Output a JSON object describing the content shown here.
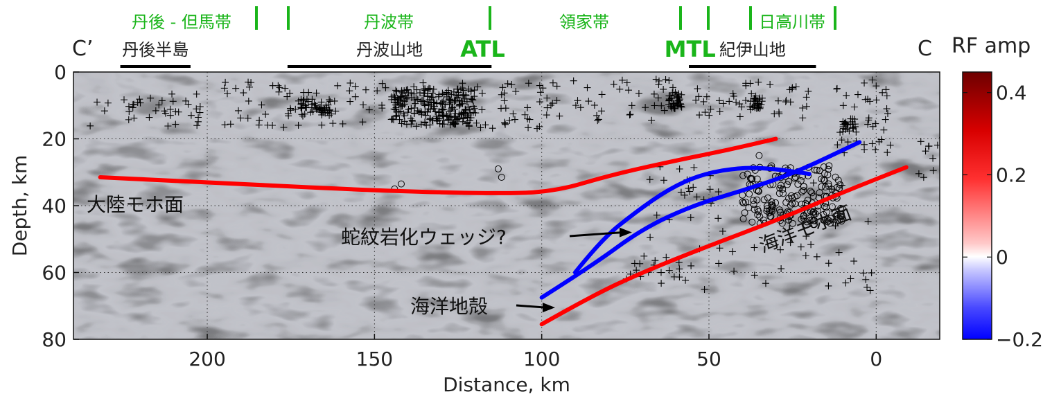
{
  "geo_zones": [
    {
      "label": "丹後 - 但馬帯"
    },
    {
      "label": "丹波帯"
    },
    {
      "label": "領家帯"
    },
    {
      "label": "日高川帯"
    }
  ],
  "faults": [
    {
      "label": "ATL",
      "distance_km": 116
    },
    {
      "label": "MTL",
      "distance_km": 54
    }
  ],
  "regions": [
    {
      "label": "丹後半島",
      "from_km": 226,
      "to_km": 205
    },
    {
      "label": "丹波山地",
      "from_km": 176,
      "to_km": 115
    },
    {
      "label": "紀伊山地",
      "from_km": 56,
      "to_km": 18
    }
  ],
  "profile": {
    "start_label": "C’",
    "end_label": "C"
  },
  "axes": {
    "xlabel": "Distance, km",
    "ylabel": "Depth, km",
    "x_range_km": [
      240,
      -19
    ],
    "y_range_km": [
      0,
      80
    ],
    "x_ticks": [
      200,
      150,
      100,
      50,
      0
    ],
    "y_ticks": [
      0,
      20,
      40,
      60,
      80
    ],
    "grid": "dotted"
  },
  "colorbar": {
    "title": "RF amp",
    "range": [
      -0.2,
      0.45
    ],
    "ticks": [
      "0.4",
      "0.2",
      "0",
      "−0.2"
    ],
    "tick_values": [
      0.4,
      0.2,
      0,
      -0.2
    ],
    "colors": [
      "#0000ff",
      "#ffffff",
      "#ff0000",
      "#7a0000"
    ]
  },
  "interpretation": {
    "continental_moho": {
      "label": "大陸モホ面",
      "color": "#ff0000",
      "points": [
        [
          232,
          31.5
        ],
        [
          200,
          33
        ],
        [
          150,
          35.5
        ],
        [
          110,
          36.5
        ],
        [
          95,
          35.5
        ],
        [
          80,
          31
        ],
        [
          60,
          26.5
        ],
        [
          45,
          23.5
        ],
        [
          30,
          20
        ]
      ]
    },
    "slab_upper": {
      "color": "#0000ff",
      "points": [
        [
          100,
          67.5
        ],
        [
          85,
          58
        ],
        [
          70,
          47
        ],
        [
          55,
          40
        ],
        [
          40,
          35.5
        ],
        [
          25,
          30.5
        ],
        [
          5,
          21
        ]
      ]
    },
    "wedge": {
      "color": "#0000ff",
      "points": [
        [
          90,
          60
        ],
        [
          82,
          50
        ],
        [
          72,
          42
        ],
        [
          62,
          35
        ],
        [
          52,
          30.5
        ],
        [
          40,
          28.5
        ],
        [
          30,
          29
        ],
        [
          20,
          30.5
        ]
      ]
    },
    "oceanic_moho": {
      "label": "海洋モホ面",
      "color": "#ff0000",
      "points": [
        [
          100,
          75.5
        ],
        [
          85,
          67
        ],
        [
          70,
          60
        ],
        [
          50,
          52
        ],
        [
          30,
          44.5
        ],
        [
          10,
          36
        ],
        [
          -9,
          28.5
        ]
      ]
    },
    "annotations": [
      {
        "label": "蛇紋岩化ウェッジ?",
        "arrow_to_km": [
          73,
          48
        ]
      },
      {
        "label": "海洋地殻",
        "arrow_to_km": [
          96,
          70.5
        ]
      }
    ]
  }
}
